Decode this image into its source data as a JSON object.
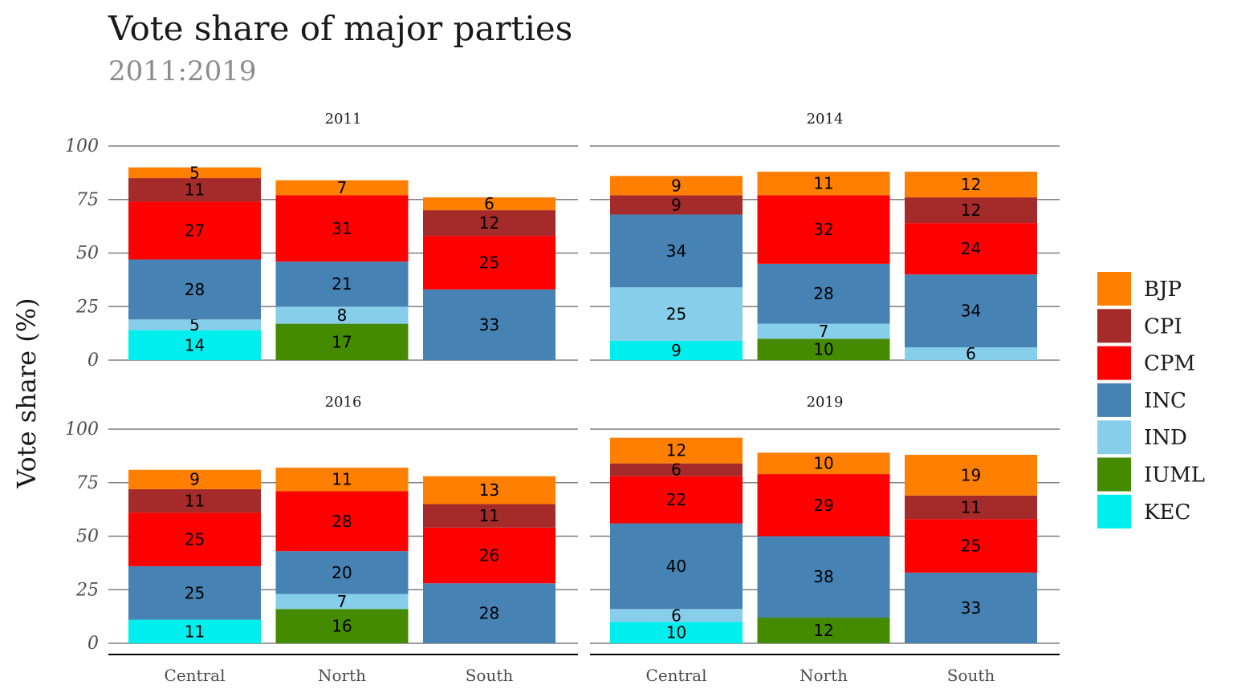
{
  "chart_data": {
    "type": "bar",
    "stacked": true,
    "title": "Vote share of major parties",
    "subtitle": "2011:2019",
    "ylabel": "Vote share (%)",
    "xlabel": "",
    "ylim": [
      0,
      100
    ],
    "yticks": [
      0,
      25,
      50,
      75,
      100
    ],
    "categories": [
      "Central",
      "North",
      "South"
    ],
    "parties": [
      "BJP",
      "CPI",
      "CPM",
      "INC",
      "IND",
      "IUML",
      "KEC"
    ],
    "stack_order_bottom_up": [
      "KEC",
      "IUML",
      "IND",
      "INC",
      "CPM",
      "CPI",
      "BJP"
    ],
    "colors": {
      "BJP": "#FF7F00",
      "CPI": "#A52A2A",
      "CPM": "#FF0000",
      "INC": "#4682B4",
      "IND": "#87CEEB",
      "IUML": "#458B00",
      "KEC": "#00EEEE"
    },
    "legend_position": "right",
    "grid": "horizontal",
    "panels": [
      {
        "label": "2011",
        "bars": [
          {
            "category": "Central",
            "values": {
              "KEC": 14,
              "IND": 5,
              "INC": 28,
              "CPM": 27,
              "CPI": 11,
              "BJP": 5
            }
          },
          {
            "category": "North",
            "values": {
              "IUML": 17,
              "IND": 8,
              "INC": 21,
              "CPM": 31,
              "BJP": 7
            }
          },
          {
            "category": "South",
            "values": {
              "INC": 33,
              "CPM": 25,
              "CPI": 12,
              "BJP": 6
            }
          }
        ]
      },
      {
        "label": "2014",
        "bars": [
          {
            "category": "Central",
            "values": {
              "KEC": 9,
              "IND": 25,
              "INC": 34,
              "CPI": 9,
              "BJP": 9
            }
          },
          {
            "category": "North",
            "values": {
              "IUML": 10,
              "IND": 7,
              "INC": 28,
              "CPM": 32,
              "BJP": 11
            }
          },
          {
            "category": "South",
            "values": {
              "IND": 6,
              "INC": 34,
              "CPM": 24,
              "CPI": 12,
              "BJP": 12
            }
          }
        ]
      },
      {
        "label": "2016",
        "bars": [
          {
            "category": "Central",
            "values": {
              "KEC": 11,
              "INC": 25,
              "CPM": 25,
              "CPI": 11,
              "BJP": 9
            }
          },
          {
            "category": "North",
            "values": {
              "IUML": 16,
              "IND": 7,
              "INC": 20,
              "CPM": 28,
              "BJP": 11
            }
          },
          {
            "category": "South",
            "values": {
              "INC": 28,
              "CPM": 26,
              "CPI": 11,
              "BJP": 13
            }
          }
        ]
      },
      {
        "label": "2019",
        "bars": [
          {
            "category": "Central",
            "values": {
              "KEC": 10,
              "IND": 6,
              "INC": 40,
              "CPM": 22,
              "CPI": 6,
              "BJP": 12
            }
          },
          {
            "category": "North",
            "values": {
              "IUML": 12,
              "INC": 38,
              "CPM": 29,
              "BJP": 10
            }
          },
          {
            "category": "South",
            "values": {
              "INC": 33,
              "CPM": 25,
              "CPI": 11,
              "BJP": 19
            }
          }
        ]
      }
    ]
  }
}
